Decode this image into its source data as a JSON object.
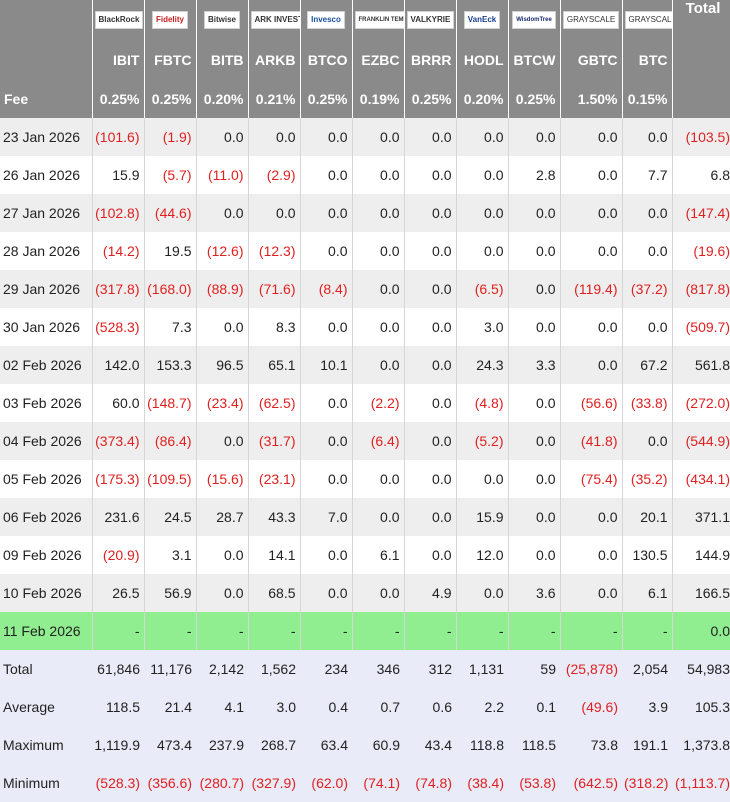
{
  "headers": {
    "logos": [
      "BlackRock",
      "Fidelity",
      "Bitwise",
      "ARK INVEST",
      "Invesco",
      "FRANKLIN TEMPLETON",
      "VALKYRIE",
      "VanEck",
      "WisdomTree",
      "GRAYSCALE",
      "GRAYSCALE"
    ],
    "total_label": "Total",
    "tickers": [
      "IBIT",
      "FBTC",
      "BITB",
      "ARKB",
      "BTCO",
      "EZBC",
      "BRRR",
      "HODL",
      "BTCW",
      "GBTC",
      "BTC"
    ],
    "fee_label": "Fee",
    "fees": [
      "0.25%",
      "0.25%",
      "0.20%",
      "0.21%",
      "0.25%",
      "0.19%",
      "0.25%",
      "0.20%",
      "0.25%",
      "1.50%",
      "0.15%"
    ]
  },
  "rows": [
    {
      "date": "23 Jan 2026",
      "values": [
        "(101.6)",
        "(1.9)",
        "0.0",
        "0.0",
        "0.0",
        "0.0",
        "0.0",
        "0.0",
        "0.0",
        "0.0",
        "0.0"
      ],
      "total": "(103.5)"
    },
    {
      "date": "26 Jan 2026",
      "values": [
        "15.9",
        "(5.7)",
        "(11.0)",
        "(2.9)",
        "0.0",
        "0.0",
        "0.0",
        "0.0",
        "2.8",
        "0.0",
        "7.7"
      ],
      "total": "6.8"
    },
    {
      "date": "27 Jan 2026",
      "values": [
        "(102.8)",
        "(44.6)",
        "0.0",
        "0.0",
        "0.0",
        "0.0",
        "0.0",
        "0.0",
        "0.0",
        "0.0",
        "0.0"
      ],
      "total": "(147.4)"
    },
    {
      "date": "28 Jan 2026",
      "values": [
        "(14.2)",
        "19.5",
        "(12.6)",
        "(12.3)",
        "0.0",
        "0.0",
        "0.0",
        "0.0",
        "0.0",
        "0.0",
        "0.0"
      ],
      "total": "(19.6)"
    },
    {
      "date": "29 Jan 2026",
      "values": [
        "(317.8)",
        "(168.0)",
        "(88.9)",
        "(71.6)",
        "(8.4)",
        "0.0",
        "0.0",
        "(6.5)",
        "0.0",
        "(119.4)",
        "(37.2)"
      ],
      "total": "(817.8)"
    },
    {
      "date": "30 Jan 2026",
      "values": [
        "(528.3)",
        "7.3",
        "0.0",
        "8.3",
        "0.0",
        "0.0",
        "0.0",
        "3.0",
        "0.0",
        "0.0",
        "0.0"
      ],
      "total": "(509.7)"
    },
    {
      "date": "02 Feb 2026",
      "values": [
        "142.0",
        "153.3",
        "96.5",
        "65.1",
        "10.1",
        "0.0",
        "0.0",
        "24.3",
        "3.3",
        "0.0",
        "67.2"
      ],
      "total": "561.8"
    },
    {
      "date": "03 Feb 2026",
      "values": [
        "60.0",
        "(148.7)",
        "(23.4)",
        "(62.5)",
        "0.0",
        "(2.2)",
        "0.0",
        "(4.8)",
        "0.0",
        "(56.6)",
        "(33.8)"
      ],
      "total": "(272.0)"
    },
    {
      "date": "04 Feb 2026",
      "values": [
        "(373.4)",
        "(86.4)",
        "0.0",
        "(31.7)",
        "0.0",
        "(6.4)",
        "0.0",
        "(5.2)",
        "0.0",
        "(41.8)",
        "0.0"
      ],
      "total": "(544.9)"
    },
    {
      "date": "05 Feb 2026",
      "values": [
        "(175.3)",
        "(109.5)",
        "(15.6)",
        "(23.1)",
        "0.0",
        "0.0",
        "0.0",
        "0.0",
        "0.0",
        "(75.4)",
        "(35.2)"
      ],
      "total": "(434.1)"
    },
    {
      "date": "06 Feb 2026",
      "values": [
        "231.6",
        "24.5",
        "28.7",
        "43.3",
        "7.0",
        "0.0",
        "0.0",
        "15.9",
        "0.0",
        "0.0",
        "20.1"
      ],
      "total": "371.1"
    },
    {
      "date": "09 Feb 2026",
      "values": [
        "(20.9)",
        "3.1",
        "0.0",
        "14.1",
        "0.0",
        "6.1",
        "0.0",
        "12.0",
        "0.0",
        "0.0",
        "130.5"
      ],
      "total": "144.9"
    },
    {
      "date": "10 Feb 2026",
      "values": [
        "26.5",
        "56.9",
        "0.0",
        "68.5",
        "0.0",
        "0.0",
        "4.9",
        "0.0",
        "3.6",
        "0.0",
        "6.1"
      ],
      "total": "166.5"
    },
    {
      "date": "11 Feb 2026",
      "values": [
        "-",
        "-",
        "-",
        "-",
        "-",
        "-",
        "-",
        "-",
        "-",
        "-",
        "-"
      ],
      "total": "0.0",
      "highlight": true
    }
  ],
  "summary": [
    {
      "label": "Total",
      "values": [
        "61,846",
        "11,176",
        "2,142",
        "1,562",
        "234",
        "346",
        "312",
        "1,131",
        "59",
        "(25,878)",
        "2,054"
      ],
      "total": "54,983"
    },
    {
      "label": "Average",
      "values": [
        "118.5",
        "21.4",
        "4.1",
        "3.0",
        "0.4",
        "0.7",
        "0.6",
        "2.2",
        "0.1",
        "(49.6)",
        "3.9"
      ],
      "total": "105.3"
    },
    {
      "label": "Maximum",
      "values": [
        "1,119.9",
        "473.4",
        "237.9",
        "268.7",
        "63.4",
        "60.9",
        "43.4",
        "118.8",
        "118.5",
        "73.8",
        "191.1"
      ],
      "total": "1,373.8"
    },
    {
      "label": "Minimum",
      "values": [
        "(528.3)",
        "(356.6)",
        "(280.7)",
        "(327.9)",
        "(62.0)",
        "(74.1)",
        "(74.8)",
        "(38.4)",
        "(53.8)",
        "(642.5)",
        "(318.2)"
      ],
      "total": "(1,113.7)"
    }
  ],
  "colors": {
    "header_bg": "#8a8a8a",
    "row_shade": "#eeeeee",
    "highlight_row": "#90ee90",
    "summary_bg": "#e9ebf8",
    "negative": "#e02020"
  }
}
